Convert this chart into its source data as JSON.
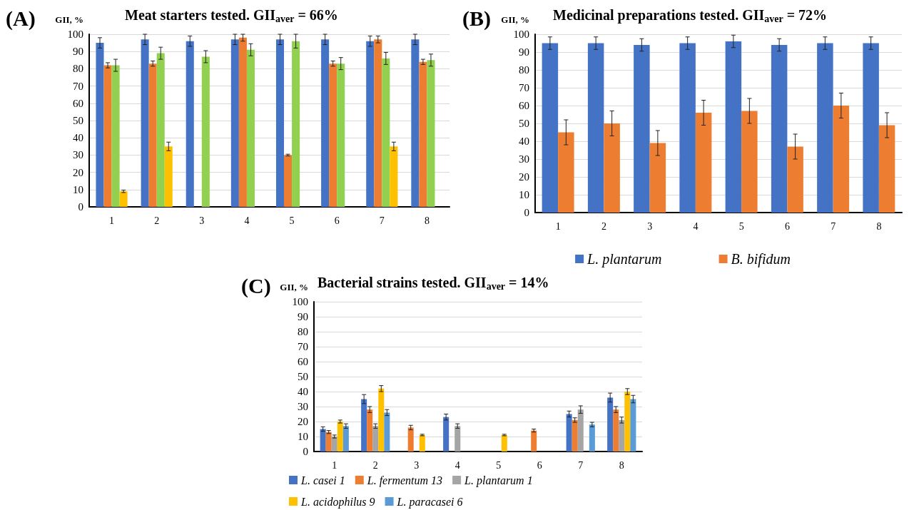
{
  "chart_data": [
    {
      "type": "bar",
      "title": "Meat starters tested. GII$_{aver}$ = 66%",
      "ylabel": "GII, %",
      "annotations": [
        "(A)"
      ],
      "categories": [
        "1",
        "2",
        "3",
        "4",
        "5",
        "6",
        "7",
        "8"
      ],
      "ylim": [
        0,
        100
      ],
      "yticks": [
        0,
        10,
        20,
        30,
        40,
        50,
        60,
        70,
        80,
        90,
        100
      ],
      "grid": "y",
      "legend": false,
      "series": [
        {
          "color": "#4472c4",
          "values": [
            95,
            97,
            96,
            97,
            97,
            97,
            96,
            97
          ],
          "errors": [
            3,
            3,
            3,
            3,
            3,
            3,
            3,
            3
          ]
        },
        {
          "color": "#ed7d31",
          "values": [
            82,
            83,
            null,
            98,
            30,
            83,
            97,
            84
          ],
          "errors": [
            1.5,
            1.5,
            null,
            2,
            0.5,
            1.5,
            2,
            1.5
          ]
        },
        {
          "color": "#92d050",
          "values": [
            82,
            89,
            87,
            91,
            96,
            83,
            86,
            85
          ],
          "errors": [
            3.5,
            3.5,
            3.5,
            3.5,
            4,
            3.5,
            3.5,
            3.5
          ]
        },
        {
          "color": "#ffc000",
          "values": [
            9,
            35,
            null,
            null,
            null,
            null,
            35,
            null
          ],
          "errors": [
            0.7,
            2.5,
            null,
            null,
            null,
            null,
            2.5,
            null
          ]
        }
      ]
    },
    {
      "type": "bar",
      "title": "Medicinal preparations tested. GII$_{aver}$ = 72%",
      "ylabel": "GII, %",
      "annotations": [
        "(B)"
      ],
      "categories": [
        "1",
        "2",
        "3",
        "4",
        "5",
        "6",
        "7",
        "8"
      ],
      "ylim": [
        0,
        100
      ],
      "yticks": [
        0,
        10,
        20,
        30,
        40,
        50,
        60,
        70,
        80,
        90,
        100
      ],
      "grid": "y",
      "legend": "bottom",
      "series": [
        {
          "name": "L. plantarum",
          "color": "#4472c4",
          "values": [
            95,
            95,
            94,
            95,
            96,
            94,
            95,
            95
          ],
          "errors": [
            3.5,
            3.5,
            3.5,
            3.5,
            3.5,
            3.5,
            3.5,
            3.5
          ]
        },
        {
          "name": "B. bifidum",
          "color": "#ed7d31",
          "values": [
            45,
            50,
            39,
            56,
            57,
            37,
            60,
            49
          ],
          "errors": [
            7,
            7,
            7,
            7,
            7,
            7,
            7,
            7
          ]
        }
      ]
    },
    {
      "type": "bar",
      "title": "Bacterial strains tested. GII$_{aver}$ = 14%",
      "ylabel": "GII, %",
      "annotations": [
        "(C)"
      ],
      "categories": [
        "1",
        "2",
        "3",
        "4",
        "5",
        "6",
        "7",
        "8"
      ],
      "ylim": [
        0,
        100
      ],
      "yticks": [
        0,
        10,
        20,
        30,
        40,
        50,
        60,
        70,
        80,
        90,
        100
      ],
      "grid": "y",
      "legend": "bottom",
      "series": [
        {
          "name": "L. casei 1",
          "color": "#4472c4",
          "values": [
            15,
            35,
            null,
            23,
            null,
            null,
            25,
            36
          ],
          "errors": [
            1.5,
            3,
            null,
            2,
            null,
            null,
            2,
            3
          ]
        },
        {
          "name": "L. fermentum 13",
          "color": "#ed7d31",
          "values": [
            13,
            28,
            16,
            null,
            null,
            14,
            21,
            28
          ],
          "errors": [
            1,
            2,
            1.5,
            null,
            null,
            1,
            1.5,
            2
          ]
        },
        {
          "name": "L. plantarum 1",
          "color": "#a5a5a5",
          "values": [
            10,
            17,
            null,
            17,
            null,
            null,
            28,
            21
          ],
          "errors": [
            1,
            1.5,
            null,
            1.5,
            null,
            null,
            2.5,
            2
          ]
        },
        {
          "name": "L. acidophilus 9",
          "color": "#ffc000",
          "values": [
            20,
            42,
            11,
            null,
            11,
            null,
            null,
            40
          ],
          "errors": [
            1,
            2,
            0.5,
            null,
            0.5,
            null,
            null,
            2
          ]
        },
        {
          "name": "L. paracasei 6",
          "color": "#5b9bd5",
          "values": [
            17,
            26,
            null,
            null,
            null,
            null,
            18,
            35
          ],
          "errors": [
            1.5,
            2,
            null,
            null,
            null,
            null,
            1.5,
            2.5
          ]
        }
      ]
    }
  ]
}
